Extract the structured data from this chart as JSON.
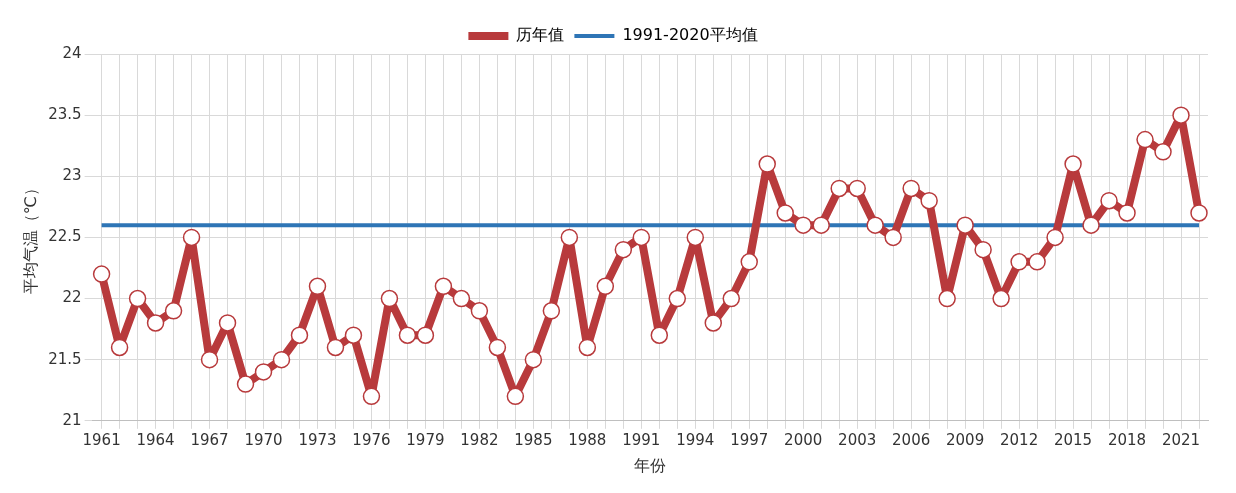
{
  "chart_data": {
    "type": "line",
    "xlabel": "年份",
    "ylabel": "平均气温（℃）",
    "categories": [
      "1961",
      null,
      null,
      "1964",
      null,
      null,
      "1967",
      null,
      null,
      "1970",
      null,
      null,
      "1973",
      null,
      null,
      "1976",
      null,
      null,
      "1979",
      null,
      null,
      "1982",
      null,
      null,
      "1985",
      null,
      null,
      "1988",
      null,
      null,
      "1991",
      null,
      null,
      "1994",
      null,
      null,
      "1997",
      null,
      null,
      "2000",
      null,
      null,
      "2003",
      null,
      null,
      "2006",
      null,
      null,
      "2009",
      null,
      null,
      "2012",
      null,
      null,
      "2015",
      null,
      null,
      "2018",
      null,
      null,
      "2021",
      null
    ],
    "series": [
      {
        "name": "历年值",
        "color": "#b83a3c",
        "marker": "circle",
        "values": [
          22.2,
          21.6,
          22.0,
          21.8,
          21.9,
          22.5,
          21.5,
          21.8,
          21.3,
          21.4,
          21.5,
          21.7,
          22.1,
          21.6,
          21.7,
          21.2,
          22.0,
          21.7,
          21.7,
          22.1,
          22.0,
          21.9,
          21.6,
          21.2,
          21.5,
          21.9,
          22.5,
          21.6,
          22.1,
          22.4,
          22.5,
          21.7,
          22.0,
          22.5,
          21.8,
          22.0,
          22.3,
          23.1,
          22.7,
          22.6,
          22.6,
          22.9,
          22.9,
          22.6,
          22.5,
          22.9,
          22.8,
          22.0,
          22.6,
          22.4,
          22.0,
          22.3,
          22.3,
          22.5,
          23.1,
          22.6,
          22.8,
          22.7,
          23.3,
          23.2,
          23.5,
          22.7
        ]
      }
    ],
    "ref_lines": [
      {
        "axis": "y",
        "value": 22.6,
        "label": "1991-2020平均值",
        "color": "#2e75b6"
      }
    ],
    "ylim": [
      21,
      24
    ],
    "yticks": [
      21,
      21.5,
      22,
      22.5,
      23,
      23.5,
      24
    ],
    "grid": true,
    "legend": "top"
  }
}
